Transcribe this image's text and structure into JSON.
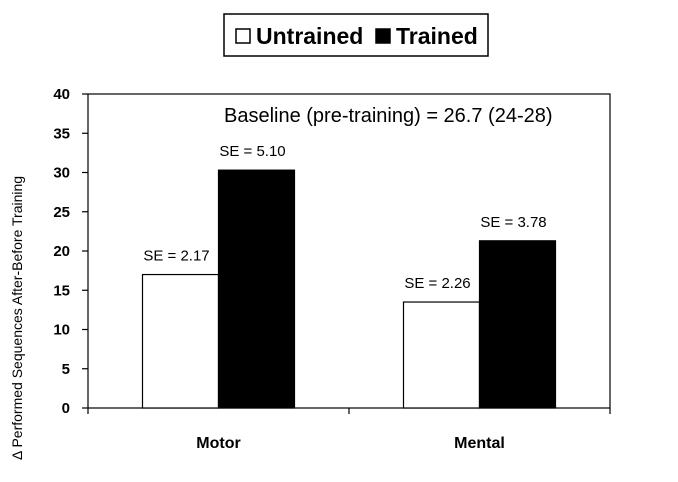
{
  "chart_data": {
    "type": "bar",
    "ylabel": "Δ Performed Sequences After-Before Training",
    "ylim": [
      0,
      40
    ],
    "yticks": [
      0,
      5,
      10,
      15,
      20,
      25,
      30,
      35,
      40
    ],
    "categories": [
      "Motor",
      "Mental"
    ],
    "series": [
      {
        "name": "Untrained",
        "values": [
          17,
          13.5
        ],
        "color": "#ffffff",
        "se_labels": [
          "SE = 2.17",
          "SE = 2.26"
        ]
      },
      {
        "name": "Trained",
        "values": [
          30.3,
          21.3
        ],
        "color": "#000000",
        "se_labels": [
          "SE = 5.10",
          "SE = 3.78"
        ]
      }
    ],
    "annotation": "Baseline (pre-training) = 26.7 (24-28)",
    "legend_position": "top-center",
    "grid": false
  }
}
